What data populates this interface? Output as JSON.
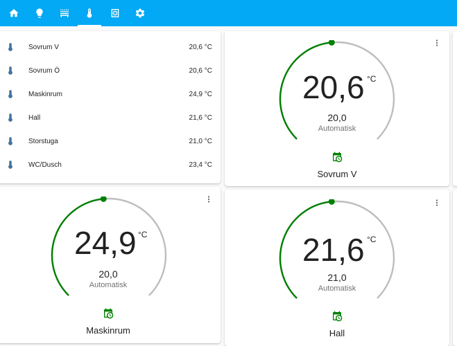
{
  "toolbar": {
    "tabs": [
      {
        "name": "home-icon"
      },
      {
        "name": "lightbulb-icon"
      },
      {
        "name": "radiator-icon"
      },
      {
        "name": "thermometer-icon",
        "active": true
      },
      {
        "name": "speaker-icon"
      },
      {
        "name": "gear-icon"
      }
    ]
  },
  "entities": {
    "rows": [
      {
        "name": "Sovrum V",
        "state": "20,6 °C"
      },
      {
        "name": "Sovrum Ö",
        "state": "20,6 °C"
      },
      {
        "name": "Maskinrum",
        "state": "24,9 °C"
      },
      {
        "name": "Hall",
        "state": "21,6 °C"
      },
      {
        "name": "Storstuga",
        "state": "21,0 °C"
      },
      {
        "name": "WC/Dusch",
        "state": "23,4 °C"
      }
    ]
  },
  "thermostats": {
    "sovrum_v": {
      "current": "20,6",
      "unit": "°C",
      "target": "20,0",
      "mode": "Automatisk",
      "name": "Sovrum V",
      "level": 0.48
    },
    "maskinrum": {
      "current": "24,9",
      "unit": "°C",
      "target": "20,0",
      "mode": "Automatisk",
      "name": "Maskinrum",
      "level": 0.48
    },
    "hall": {
      "current": "21,6",
      "unit": "°C",
      "target": "21,0",
      "mode": "Automatisk",
      "name": "Hall",
      "level": 0.48
    }
  },
  "colors": {
    "header": "#03a9f4",
    "active_arc": "#008000",
    "inactive_arc": "#bdbdbd",
    "entity_icon": "#44739e"
  }
}
